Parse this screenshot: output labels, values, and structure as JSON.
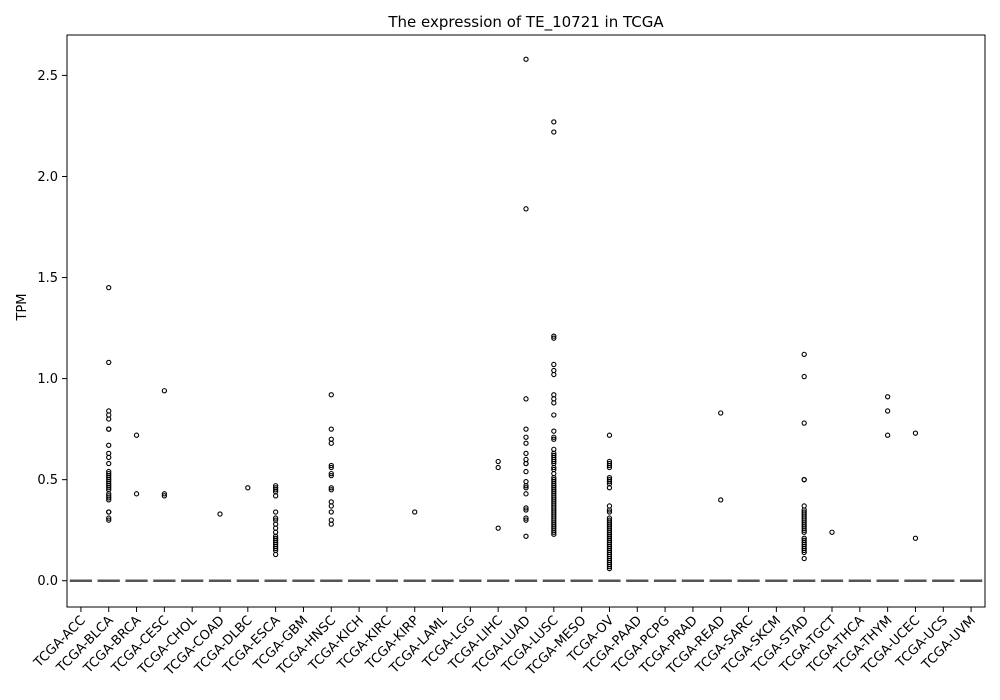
{
  "chart_data": {
    "type": "box",
    "title": "The expression of TE_10721 in TCGA",
    "xlabel": "",
    "ylabel": "TPM",
    "ylim": [
      -0.13,
      2.7
    ],
    "yticks": [
      0.0,
      0.5,
      1.0,
      1.5,
      2.0,
      2.5
    ],
    "ytick_labels": [
      "0.0",
      "0.5",
      "1.0",
      "1.5",
      "2.0",
      "2.5"
    ],
    "grid": false,
    "box_color": "#555555",
    "outlier_color": "#000000",
    "categories": [
      "TCGA-ACC",
      "TCGA-BLCA",
      "TCGA-BRCA",
      "TCGA-CESC",
      "TCGA-CHOL",
      "TCGA-COAD",
      "TCGA-DLBC",
      "TCGA-ESCA",
      "TCGA-GBM",
      "TCGA-HNSC",
      "TCGA-KICH",
      "TCGA-KIRC",
      "TCGA-KIRP",
      "TCGA-LAML",
      "TCGA-LGG",
      "TCGA-LIHC",
      "TCGA-LUAD",
      "TCGA-LUSC",
      "TCGA-MESO",
      "TCGA-OV",
      "TCGA-PAAD",
      "TCGA-PCPG",
      "TCGA-PRAD",
      "TCGA-READ",
      "TCGA-SARC",
      "TCGA-SKCM",
      "TCGA-STAD",
      "TCGA-TGCT",
      "TCGA-THCA",
      "TCGA-THYM",
      "TCGA-UCEC",
      "TCGA-UCS",
      "TCGA-UVM"
    ],
    "medians": [
      0,
      0,
      0,
      0,
      0,
      0,
      0,
      0,
      0,
      0,
      0,
      0,
      0,
      0,
      0,
      0,
      0,
      0,
      0,
      0,
      0,
      0,
      0,
      0,
      0,
      0,
      0,
      0,
      0,
      0,
      0,
      0,
      0
    ],
    "outliers": [
      [],
      [
        1.45,
        1.08,
        0.84,
        0.82,
        0.8,
        0.75,
        0.75,
        0.67,
        0.63,
        0.61,
        0.58,
        0.54,
        0.53,
        0.52,
        0.51,
        0.5,
        0.49,
        0.48,
        0.47,
        0.46,
        0.45,
        0.43,
        0.42,
        0.41,
        0.4,
        0.34,
        0.34,
        0.31,
        0.3
      ],
      [
        0.72,
        0.43
      ],
      [
        0.94,
        0.43,
        0.42
      ],
      [],
      [
        0.33
      ],
      [
        0.46
      ],
      [
        0.47,
        0.46,
        0.45,
        0.44,
        0.42,
        0.34,
        0.31,
        0.3,
        0.28,
        0.26,
        0.24,
        0.22,
        0.21,
        0.2,
        0.19,
        0.18,
        0.17,
        0.16,
        0.15,
        0.13
      ],
      [],
      [
        0.92,
        0.75,
        0.7,
        0.68,
        0.57,
        0.56,
        0.53,
        0.52,
        0.46,
        0.45,
        0.39,
        0.37,
        0.34,
        0.3,
        0.28
      ],
      [],
      [],
      [
        0.34
      ],
      [],
      [],
      [
        0.59,
        0.56,
        0.26
      ],
      [
        2.58,
        1.84,
        0.9,
        0.75,
        0.71,
        0.68,
        0.63,
        0.6,
        0.58,
        0.58,
        0.54,
        0.49,
        0.47,
        0.46,
        0.43,
        0.36,
        0.35,
        0.31,
        0.3,
        0.22
      ],
      [
        2.27,
        2.22,
        1.21,
        1.2,
        1.07,
        1.04,
        1.02,
        0.92,
        0.9,
        0.88,
        0.82,
        0.74,
        0.71,
        0.7,
        0.65,
        0.63,
        0.62,
        0.61,
        0.6,
        0.59,
        0.58,
        0.56,
        0.55,
        0.53,
        0.51,
        0.5,
        0.49,
        0.48,
        0.47,
        0.46,
        0.45,
        0.44,
        0.43,
        0.42,
        0.41,
        0.4,
        0.39,
        0.38,
        0.37,
        0.36,
        0.35,
        0.34,
        0.33,
        0.32,
        0.31,
        0.3,
        0.29,
        0.28,
        0.27,
        0.26,
        0.25,
        0.24,
        0.23
      ],
      [],
      [
        0.72,
        0.59,
        0.58,
        0.57,
        0.56,
        0.51,
        0.5,
        0.49,
        0.48,
        0.46,
        0.37,
        0.35,
        0.34,
        0.31,
        0.3,
        0.29,
        0.28,
        0.27,
        0.26,
        0.25,
        0.24,
        0.23,
        0.22,
        0.21,
        0.2,
        0.19,
        0.18,
        0.17,
        0.16,
        0.15,
        0.14,
        0.13,
        0.12,
        0.11,
        0.1,
        0.09,
        0.08,
        0.07,
        0.06
      ],
      [],
      [],
      [],
      [
        0.83,
        0.4
      ],
      [],
      [],
      [
        1.12,
        1.01,
        0.78,
        0.5,
        0.5,
        0.37,
        0.35,
        0.34,
        0.33,
        0.32,
        0.31,
        0.3,
        0.29,
        0.28,
        0.27,
        0.26,
        0.25,
        0.24,
        0.21,
        0.2,
        0.19,
        0.18,
        0.17,
        0.16,
        0.15,
        0.14,
        0.11
      ],
      [
        0.24
      ],
      [],
      [
        0.91,
        0.84,
        0.72
      ],
      [
        0.73,
        0.21
      ],
      [],
      []
    ]
  }
}
